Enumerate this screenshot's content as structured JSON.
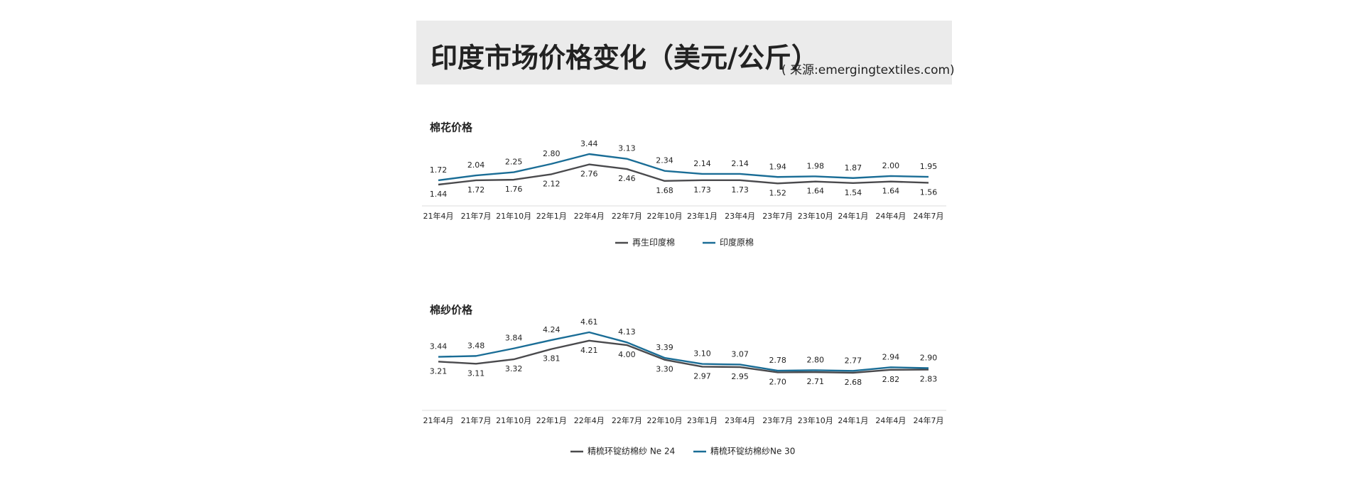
{
  "title": "印度市场价格变化（美元/公斤）",
  "source": "( 来源:emergingtextiles.com)",
  "chart_data": [
    {
      "type": "line",
      "title": "棉花价格",
      "categories": [
        "21年4月",
        "21年7月",
        "21年10月",
        "22年1月",
        "22年4月",
        "22年7月",
        "22年10月",
        "23年1月",
        "23年4月",
        "23年7月",
        "23年10月",
        "24年1月",
        "24年4月",
        "24年7月"
      ],
      "series": [
        {
          "name": "再生印度棉",
          "color": "#4a4a4d",
          "values": [
            1.44,
            1.72,
            1.76,
            2.12,
            2.76,
            2.46,
            1.68,
            1.73,
            1.73,
            1.52,
            1.64,
            1.54,
            1.64,
            1.56
          ],
          "value_labels": [
            "1.44",
            "1.72",
            "1.76",
            "2.12",
            "2.76",
            "2.46",
            "1.68",
            "1.73",
            "1.73",
            "1.52",
            "1.64",
            "1.54",
            "1.64",
            "1.56"
          ]
        },
        {
          "name": "印度原棉",
          "color": "#1a6d96",
          "values": [
            1.72,
            2.04,
            2.25,
            2.8,
            3.44,
            3.13,
            2.34,
            2.14,
            2.14,
            1.94,
            1.98,
            1.87,
            2.0,
            1.95
          ],
          "value_labels": [
            "1.72",
            "2.04",
            "2.25",
            "2.80",
            "3.44",
            "3.13",
            "2.34",
            "2.14",
            "2.14",
            "1.94",
            "1.98",
            "1.87",
            "2.00",
            "1.95"
          ]
        }
      ]
    },
    {
      "type": "line",
      "title": "棉纱价格",
      "categories": [
        "21年4月",
        "21年7月",
        "21年10月",
        "22年1月",
        "22年4月",
        "22年7月",
        "22年10月",
        "23年1月",
        "23年4月",
        "23年7月",
        "23年10月",
        "24年1月",
        "24年4月",
        "24年7月"
      ],
      "series": [
        {
          "name": "精梳环锭纺棉纱 Ne 24",
          "color": "#4a4a4d",
          "values": [
            3.21,
            3.11,
            3.32,
            3.81,
            4.21,
            4.0,
            3.3,
            2.97,
            2.95,
            2.7,
            2.71,
            2.68,
            2.82,
            2.83
          ],
          "value_labels": [
            "3.21",
            "3.11",
            "3.32",
            "3.81",
            "4.21",
            "4.00",
            "3.30",
            "2.97",
            "2.95",
            "2.70",
            "2.71",
            "2.68",
            "2.82",
            "2.83"
          ]
        },
        {
          "name": "精梳环锭纺棉纱Ne 30",
          "color": "#1a6d96",
          "values": [
            3.44,
            3.48,
            3.84,
            4.24,
            4.61,
            4.13,
            3.39,
            3.1,
            3.07,
            2.78,
            2.8,
            2.77,
            2.94,
            2.9
          ],
          "value_labels": [
            "3.44",
            "3.48",
            "3.84",
            "4.24",
            "4.61",
            "4.13",
            "3.39",
            "3.10",
            "3.07",
            "2.78",
            "2.80",
            "2.77",
            "2.94",
            "2.90"
          ]
        }
      ]
    }
  ]
}
